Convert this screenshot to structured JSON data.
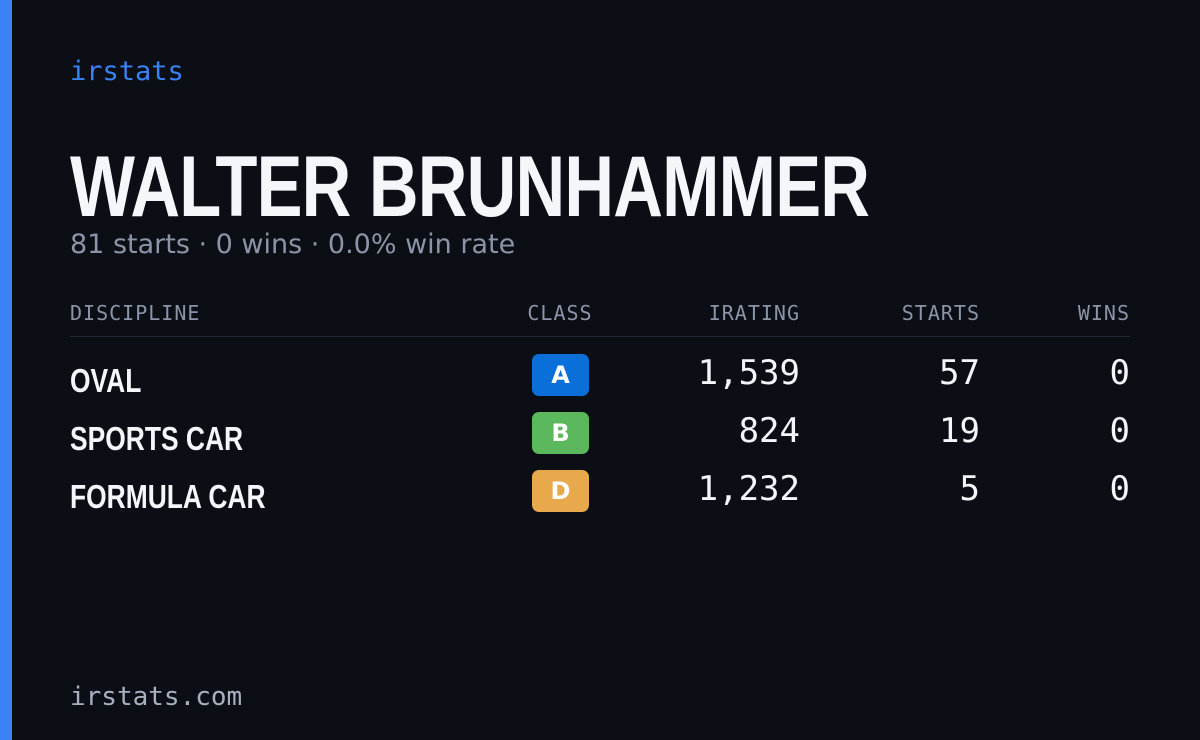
{
  "header": {
    "brand": "irstats",
    "name": "WALTER BRUNHAMMER",
    "summary": "81 starts · 0 wins · 0.0% win rate"
  },
  "table": {
    "columns": [
      "DISCIPLINE",
      "CLASS",
      "IRATING",
      "STARTS",
      "WINS"
    ],
    "rows": [
      {
        "discipline": "OVAL",
        "class": "A",
        "class_color": "#0a6fd8",
        "irating": "1,539",
        "starts": "57",
        "wins": "0"
      },
      {
        "discipline": "SPORTS CAR",
        "class": "B",
        "class_color": "#5cb85c",
        "irating": "824",
        "starts": "19",
        "wins": "0"
      },
      {
        "discipline": "FORMULA CAR",
        "class": "D",
        "class_color": "#e8a84c",
        "irating": "1,232",
        "starts": "5",
        "wins": "0"
      }
    ]
  },
  "footer": {
    "url": "irstats.com"
  }
}
